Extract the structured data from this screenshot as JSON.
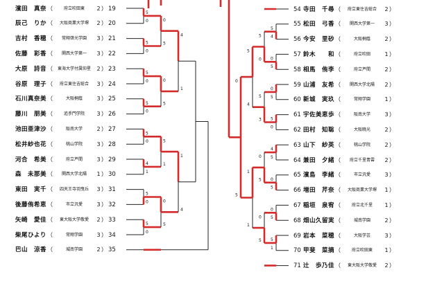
{
  "colors": {
    "winner_line": "#d42a2a",
    "line": "#222222",
    "background": "#ffffff"
  },
  "left_entries": [
    {
      "seed": "19",
      "name": "濱田　真奈",
      "school": "府立吹田東",
      "grade": "2"
    },
    {
      "seed": "20",
      "name": "辰己　りか",
      "school": "大阪商業大学堺",
      "grade": "2"
    },
    {
      "seed": "21",
      "name": "吉村　香穂",
      "school": "常翔啓光学園",
      "grade": "3"
    },
    {
      "seed": "22",
      "name": "佐藤　彩香",
      "school": "関西大学第一",
      "grade": "3"
    },
    {
      "seed": "23",
      "name": "大原　詩音",
      "school": "東海大学付属仰星",
      "grade": "2"
    },
    {
      "seed": "24",
      "name": "谷原　理子",
      "school": "府立東住吉総合",
      "grade": "3"
    },
    {
      "seed": "25",
      "name": "石川真奈美",
      "school": "大阪桐蔭",
      "grade": "3"
    },
    {
      "seed": "26",
      "name": "藤川　朋美",
      "school": "追手門学院",
      "grade": "3"
    },
    {
      "seed": "27",
      "name": "池田亜津沙",
      "school": "阪南大学",
      "grade": "2"
    },
    {
      "seed": "28",
      "name": "松井紗也花",
      "school": "桃山学院",
      "grade": "3"
    },
    {
      "seed": "29",
      "name": "河合　希美",
      "school": "府立芦間",
      "grade": "3"
    },
    {
      "seed": "30",
      "name": "森　未那美",
      "school": "関西大学北陽",
      "grade": "1"
    },
    {
      "seed": "31",
      "name": "東田　実千",
      "school": "四天王寺羽曳丘",
      "grade": "3"
    },
    {
      "seed": "32",
      "name": "後藤侑希恵",
      "school": "市立汎愛",
      "grade": "3"
    },
    {
      "seed": "33",
      "name": "矢崎　愛佳",
      "school": "東大阪大学敬愛",
      "grade": "2"
    },
    {
      "seed": "34",
      "name": "柴尾ひより",
      "school": "常翔学園",
      "grade": "3"
    },
    {
      "seed": "35",
      "name": "巴山　涼香",
      "school": "城南学園",
      "grade": "2"
    }
  ],
  "right_entries": [
    {
      "seed": "54",
      "name": "寺田　千尋",
      "school": "府立東住吉総合",
      "grade": "2"
    },
    {
      "seed": "55",
      "name": "松田　弓香",
      "school": "関西大学第一",
      "grade": "3"
    },
    {
      "seed": "56",
      "name": "今安　里砂",
      "school": "大阪桐蔭",
      "grade": "2"
    },
    {
      "seed": "57",
      "name": "鈴木　　和",
      "school": "府立吹田",
      "grade": "1"
    },
    {
      "seed": "58",
      "name": "相馬　侑李",
      "school": "府立芦間",
      "grade": "2"
    },
    {
      "seed": "59",
      "name": "山浦　友希",
      "school": "関西大学北陽",
      "grade": "2"
    },
    {
      "seed": "60",
      "name": "新城　実玖",
      "school": "常翔学園",
      "grade": "1"
    },
    {
      "seed": "61",
      "name": "宇佐美恵歩",
      "school": "阪南大学",
      "grade": "3"
    },
    {
      "seed": "62",
      "name": "田村　知聡",
      "school": "大阪暁光",
      "grade": "2"
    },
    {
      "seed": "63",
      "name": "山下　紗英",
      "school": "桃山学院",
      "grade": "2"
    },
    {
      "seed": "64",
      "name": "兼田　夕緒",
      "school": "府立千里青雲",
      "grade": "2"
    },
    {
      "seed": "65",
      "name": "濱島　李緒",
      "school": "市立汎愛",
      "grade": "3"
    },
    {
      "seed": "66",
      "name": "増田　芹奈",
      "school": "大阪商業大学堺",
      "grade": "1"
    },
    {
      "seed": "67",
      "name": "稲垣　泉宥",
      "school": "府立北千里",
      "grade": "1"
    },
    {
      "seed": "68",
      "name": "畑山久留実",
      "school": "城南学園",
      "grade": "2"
    },
    {
      "seed": "69",
      "name": "岩本　菜穂",
      "school": "大阪学芸",
      "grade": "3"
    },
    {
      "seed": "70",
      "name": "甲斐　菜摘",
      "school": "府立吹田東",
      "grade": "1"
    },
    {
      "seed": "71",
      "name": "辻　歩乃佳",
      "school": "東大阪大学敬愛",
      "grade": "2"
    }
  ],
  "scores_left": [
    "5",
    "0",
    "5",
    "0",
    "5",
    "0",
    "5",
    "0",
    "5",
    "0",
    "4",
    "1",
    "5",
    "0",
    "5",
    "0",
    "0",
    "5",
    "0",
    "5",
    "5",
    "1",
    "0",
    "5",
    "4",
    "1",
    "1",
    "4",
    "0",
    "5",
    "5",
    "0",
    "4",
    "0"
  ],
  "scores_right": [
    "5",
    "4",
    "0",
    "5",
    "0",
    "5",
    "5",
    "0",
    "4",
    "5",
    "0",
    "5",
    "0",
    "5",
    "5",
    "1",
    "5",
    "0",
    "5",
    "3",
    "0",
    "5",
    "0",
    "5",
    "5",
    "4",
    "1",
    "1",
    "0",
    "5",
    "0",
    "5",
    "5",
    "0",
    "4"
  ]
}
